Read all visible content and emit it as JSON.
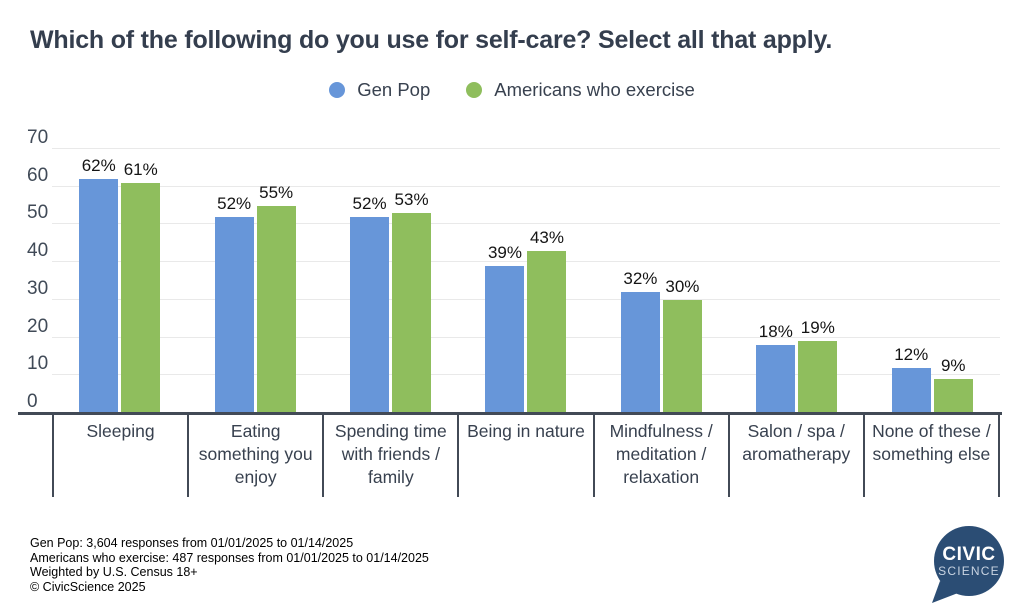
{
  "title": "Which of the following do you use for self-care? Select all that apply.",
  "legend": {
    "items": [
      {
        "label": "Gen Pop",
        "color": "#6796d9"
      },
      {
        "label": "Americans who exercise",
        "color": "#8fbe5d"
      }
    ]
  },
  "chart_data": {
    "type": "bar",
    "title": "Which of the following do you use for self-care? Select all that apply.",
    "categories": [
      "Sleeping",
      "Eating something you enjoy",
      "Spending time with friends / family",
      "Being in nature",
      "Mindfulness / meditation / relaxation",
      "Salon / spa / aromatherapy",
      "None of these / something else"
    ],
    "series": [
      {
        "name": "Gen Pop",
        "color": "#6796d9",
        "values": [
          62,
          52,
          52,
          39,
          32,
          18,
          12
        ]
      },
      {
        "name": "Americans who exercise",
        "color": "#8fbe5d",
        "values": [
          61,
          55,
          53,
          43,
          30,
          19,
          9
        ]
      }
    ],
    "value_suffix": "%",
    "xlabel": "",
    "ylabel": "",
    "ylim": [
      0,
      70
    ],
    "ytick_step": 10,
    "grid": true,
    "legend_position": "top"
  },
  "footer": {
    "lines": [
      "Gen Pop: 3,604 responses from 01/01/2025 to 01/14/2025",
      "Americans who exercise: 487 responses from 01/01/2025 to 01/14/2025",
      "Weighted by U.S. Census 18+",
      "© CivicScience 2025"
    ]
  },
  "logo": {
    "line1": "CIVIC",
    "line2": "SCIENCE",
    "color": "#2b4d74"
  },
  "colors": {
    "title_text": "#343e4e",
    "axis_text": "#404a57",
    "gridline": "#e9e9e9",
    "axis_line": "#424a56",
    "background": "#ffffff"
  }
}
